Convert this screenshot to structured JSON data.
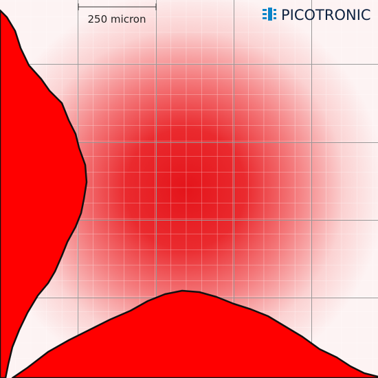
{
  "scale_bar": {
    "label": "250 micron"
  },
  "logo": {
    "text": "PICOTRONIC"
  }
}
